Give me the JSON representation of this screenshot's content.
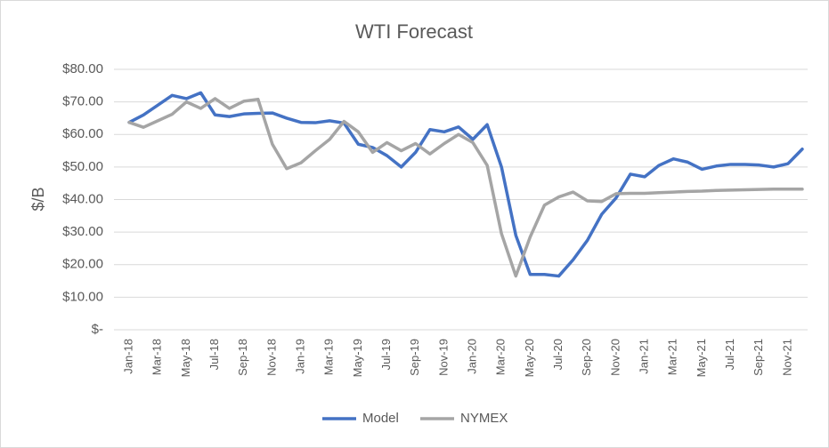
{
  "chart_data": {
    "type": "line",
    "title": "WTI Forecast",
    "y_label": "$/B",
    "categories": [
      "Jan-18",
      null,
      "Mar-18",
      null,
      "May-18",
      null,
      "Jul-18",
      null,
      "Sep-18",
      null,
      "Nov-18",
      null,
      "Jan-19",
      null,
      "Mar-19",
      null,
      "May-19",
      null,
      "Jul-19",
      null,
      "Sep-19",
      null,
      "Nov-19",
      null,
      "Jan-20",
      null,
      "Mar-20",
      null,
      "May-20",
      null,
      "Jul-20",
      null,
      "Sep-20",
      null,
      "Nov-20",
      null,
      "Jan-21",
      null,
      "Mar-21",
      null,
      "May-21",
      null,
      "Jul-21",
      null,
      "Sep-21",
      null,
      "Nov-21",
      null
    ],
    "series": [
      {
        "name": "Model",
        "color": "#4472c4",
        "values": [
          63.7,
          66,
          69,
          72,
          71,
          72.8,
          66,
          65.5,
          66.3,
          66.5,
          66.6,
          65,
          63.7,
          63.6,
          64.2,
          63.5,
          57,
          56,
          53.5,
          50,
          54.5,
          61.5,
          60.8,
          62.3,
          58.5,
          63,
          50,
          29,
          17,
          17,
          16.5,
          21.5,
          27.5,
          35.5,
          40.5,
          47.8,
          47,
          50.5,
          52.5,
          51.5,
          49.3,
          50.3,
          50.8,
          50.8,
          50.6,
          50,
          51,
          55.5
        ]
      },
      {
        "name": "NYMEX",
        "color": "#a5a5a5",
        "values": [
          63.7,
          62.2,
          64.2,
          66.2,
          70,
          68,
          71,
          68,
          70.2,
          70.8,
          57,
          49.5,
          51.3,
          55,
          58.5,
          64,
          60.8,
          54.5,
          57.5,
          55,
          57.2,
          54,
          57.2,
          60,
          57.5,
          50.5,
          29.5,
          16.5,
          28.5,
          38.3,
          40.8,
          42.3,
          39.6,
          39.4,
          41.8,
          41.9,
          41.9,
          42.1,
          42.3,
          42.5,
          42.6,
          42.8,
          42.9,
          43,
          43.1,
          43.2,
          43.2,
          43.2
        ]
      }
    ],
    "ylim": [
      0,
      80
    ],
    "yticks": [
      {
        "value": 0,
        "label": "$-"
      },
      {
        "value": 10,
        "label": "$10.00"
      },
      {
        "value": 20,
        "label": "$20.00"
      },
      {
        "value": 30,
        "label": "$30.00"
      },
      {
        "value": 40,
        "label": "$40.00"
      },
      {
        "value": 50,
        "label": "$50.00"
      },
      {
        "value": 60,
        "label": "$60.00"
      },
      {
        "value": 70,
        "label": "$70.00"
      },
      {
        "value": 80,
        "label": "$80.00"
      }
    ],
    "grid": true,
    "legend": "bottom"
  }
}
